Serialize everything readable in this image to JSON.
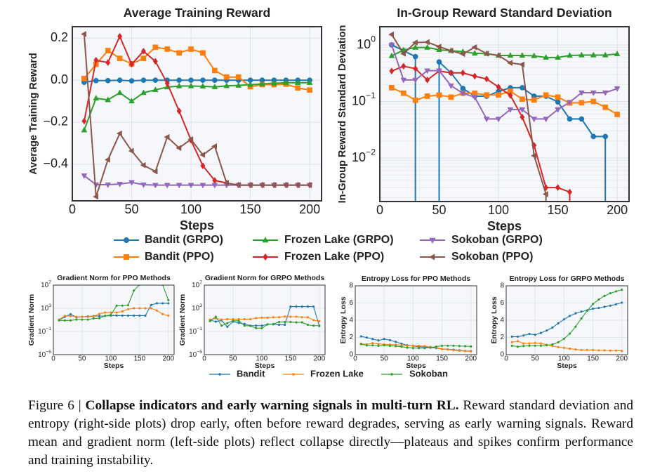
{
  "colors": {
    "blue": "#1f77b4",
    "orange": "#ff7f0e",
    "green": "#2ca02c",
    "red": "#d62728",
    "purple": "#9467bd",
    "brown": "#8c564b"
  },
  "top_legend": [
    {
      "label": "Bandit (GRPO)",
      "color": "#1f77b4",
      "marker": "circle"
    },
    {
      "label": "Frozen Lake (GRPO)",
      "color": "#2ca02c",
      "marker": "triangle-up"
    },
    {
      "label": "Sokoban (GRPO)",
      "color": "#9467bd",
      "marker": "triangle-down"
    },
    {
      "label": "Bandit (PPO)",
      "color": "#ff7f0e",
      "marker": "square"
    },
    {
      "label": "Frozen Lake (PPO)",
      "color": "#d62728",
      "marker": "diamond"
    },
    {
      "label": "Sokoban (PPO)",
      "color": "#8c564b",
      "marker": "triangle-left"
    }
  ],
  "bottom_legend": [
    {
      "label": "Bandit",
      "color": "#1f77b4"
    },
    {
      "label": "Frozen Lake",
      "color": "#ff7f0e"
    },
    {
      "label": "Sokoban",
      "color": "#2ca02c"
    }
  ],
  "chart_data": [
    {
      "type": "line",
      "title": "Average Training Reward",
      "xlabel": "Steps",
      "ylabel": "Average Training Reward",
      "xlim": [
        0,
        210
      ],
      "ylim": [
        -0.575,
        0.255
      ],
      "yscale": "linear",
      "grid": true,
      "xticks": [
        0,
        50,
        100,
        150,
        200
      ],
      "yticks": [
        -0.4,
        -0.2,
        0.0,
        0.2
      ],
      "ytick_labels": [
        "−0.4",
        "−0.2",
        "0.0",
        "0.2"
      ],
      "x": [
        10,
        20,
        30,
        40,
        50,
        60,
        70,
        80,
        90,
        100,
        110,
        120,
        130,
        140,
        150,
        160,
        170,
        180,
        190,
        200
      ],
      "series": [
        {
          "name": "Bandit (GRPO)",
          "color": "#1f77b4",
          "marker": "circle",
          "values": [
            -0.01,
            -0.002,
            -0.002,
            0,
            -0.003,
            0,
            0,
            0,
            0,
            0,
            0,
            0,
            0,
            0,
            0,
            0,
            0,
            0,
            0,
            0
          ]
        },
        {
          "name": "Bandit (PPO)",
          "color": "#ff7f0e",
          "marker": "square",
          "values": [
            0.008,
            0.076,
            0.141,
            0.104,
            0.078,
            0.104,
            0.157,
            0.148,
            0.13,
            0.148,
            0.13,
            0.046,
            0.015,
            0.015,
            -0.031,
            -0.021,
            -0.021,
            -0.019,
            -0.037,
            -0.047
          ]
        },
        {
          "name": "Frozen Lake (GRPO)",
          "color": "#2ca02c",
          "marker": "triangle-up",
          "values": [
            -0.238,
            -0.086,
            -0.094,
            -0.06,
            -0.1,
            -0.06,
            -0.046,
            -0.033,
            -0.028,
            -0.028,
            -0.029,
            -0.032,
            -0.027,
            -0.025,
            -0.021,
            -0.018,
            -0.015,
            -0.012,
            -0.012,
            -0.012
          ]
        },
        {
          "name": "Frozen Lake (PPO)",
          "color": "#d62728",
          "marker": "diamond",
          "values": [
            -0.195,
            0.095,
            0.084,
            0.209,
            0.076,
            0.138,
            0.09,
            -0.015,
            -0.147,
            -0.286,
            -0.408,
            -0.478,
            -0.49,
            -0.5,
            -0.5,
            -0.5,
            -0.5,
            -0.5,
            -0.5,
            -0.5
          ]
        },
        {
          "name": "Sokoban (GRPO)",
          "color": "#9467bd",
          "marker": "triangle-down",
          "values": [
            -0.455,
            -0.498,
            -0.498,
            -0.495,
            -0.487,
            -0.498,
            -0.5,
            -0.5,
            -0.5,
            -0.5,
            -0.5,
            -0.5,
            -0.5,
            -0.5,
            -0.5,
            -0.5,
            -0.5,
            -0.5,
            -0.5,
            -0.5
          ]
        },
        {
          "name": "Sokoban (PPO)",
          "color": "#8c564b",
          "marker": "triangle-left",
          "values": [
            0.22,
            -0.555,
            -0.379,
            -0.254,
            -0.337,
            -0.405,
            -0.435,
            -0.271,
            -0.323,
            -0.282,
            -0.356,
            -0.315,
            -0.49,
            -0.5,
            -0.5,
            -0.5,
            -0.5,
            -0.5,
            -0.5,
            -0.5
          ]
        }
      ]
    },
    {
      "type": "line",
      "title": "In-Group Reward Standard Deviation",
      "xlabel": "Steps",
      "ylabel": "In-Group Reward Standard Deviation",
      "xlim": [
        0,
        210
      ],
      "ylim": [
        0.0017,
        2.1
      ],
      "yscale": "log",
      "grid": true,
      "xticks": [
        0,
        50,
        100,
        150,
        200
      ],
      "yticks": [
        1,
        0.1,
        0.01
      ],
      "ytick_labels": [
        {
          "b": "10",
          "e": "0"
        },
        {
          "b": "10",
          "e": "−1"
        },
        {
          "b": "10",
          "e": "−2"
        }
      ],
      "x": [
        10,
        20,
        30,
        40,
        50,
        60,
        70,
        80,
        90,
        100,
        110,
        120,
        130,
        140,
        150,
        160,
        170,
        180,
        190,
        200
      ],
      "series": [
        {
          "name": "Bandit (GRPO)",
          "color": "#1f77b4",
          "marker": "circle",
          "values": [
            1.0,
            0.79,
            0.62,
            0,
            0.5,
            0.32,
            0.17,
            0.124,
            0.124,
            0.15,
            0.175,
            0.175,
            0.124,
            0.124,
            0.098,
            0.049,
            0.049,
            0.024,
            0.024,
            0
          ]
        },
        {
          "name": "Bandit (PPO)",
          "color": "#ff7f0e",
          "marker": "square",
          "values": [
            0.175,
            0.14,
            0.105,
            0.124,
            0.13,
            0.119,
            0.14,
            0.14,
            0.13,
            0.13,
            0.152,
            0.11,
            0.106,
            0.13,
            0.119,
            0.094,
            0.095,
            0.1,
            0.079,
            0.059
          ]
        },
        {
          "name": "Frozen Lake (GRPO)",
          "color": "#2ca02c",
          "marker": "triangle-up",
          "values": [
            0.64,
            0.81,
            0.9,
            0.9,
            0.82,
            0.79,
            0.76,
            0.71,
            0.7,
            0.65,
            0.65,
            0.65,
            0.64,
            0.6,
            0.6,
            0.65,
            0.66,
            0.66,
            0.66,
            0.69
          ]
        },
        {
          "name": "Frozen Lake (PPO)",
          "color": "#d62728",
          "marker": "diamond",
          "values": [
            0.345,
            0.42,
            0.38,
            0.24,
            0.345,
            0.32,
            0.32,
            0.28,
            0.25,
            0.18,
            0.128,
            0.053,
            0.0167,
            0.003,
            0.003,
            0.0025,
            0,
            0,
            0,
            0
          ]
        },
        {
          "name": "Sokoban (GRPO)",
          "color": "#9467bd",
          "marker": "triangle-down",
          "values": [
            1.0,
            0.24,
            0.24,
            0.35,
            0.35,
            0.19,
            0.14,
            0.119,
            0.049,
            0.049,
            0.072,
            0.072,
            0.049,
            0.049,
            0.072,
            0.097,
            0.143,
            0.143,
            0.143,
            0.169
          ]
        },
        {
          "name": "Sokoban (PPO)",
          "color": "#8c564b",
          "marker": "triangle-left",
          "values": [
            1.53,
            0.7,
            1.1,
            1.12,
            0.93,
            0.79,
            0.69,
            0.91,
            0.7,
            0.65,
            0.48,
            0.45,
            0.011,
            0.0023,
            0,
            0,
            0,
            0,
            0,
            0
          ]
        }
      ]
    },
    {
      "type": "line",
      "title": "Gradient Norm for PPO Methods",
      "xlabel": "Steps",
      "ylabel": "Gradient Norm",
      "xlim": [
        0,
        210
      ],
      "ylim": [
        1e-05,
        10000000.0
      ],
      "yscale": "log",
      "grid": true,
      "xticks": [
        0,
        50,
        100,
        150,
        200
      ],
      "yticks": [
        1e-05,
        0.1,
        1000,
        10000000.0
      ],
      "ytick_labels": [
        {
          "b": "10",
          "e": "−5"
        },
        {
          "b": "10",
          "e": "−1"
        },
        {
          "b": "10",
          "e": "3"
        },
        {
          "b": "10",
          "e": "7"
        }
      ],
      "x": [
        10,
        20,
        30,
        40,
        50,
        60,
        70,
        80,
        90,
        100,
        110,
        120,
        130,
        140,
        150,
        160,
        170,
        180,
        190,
        200
      ],
      "series": [
        {
          "name": "Bandit",
          "color": "#1f77b4",
          "marker": "dot",
          "values": [
            9,
            34,
            95,
            28,
            34,
            40,
            45,
            45,
            48,
            54,
            56,
            54,
            54,
            54,
            54,
            54,
            3700,
            7200,
            7200,
            7200
          ]
        },
        {
          "name": "Frozen Lake",
          "color": "#ff7f0e",
          "marker": "dot",
          "values": [
            11,
            50,
            45,
            34,
            34,
            34,
            40,
            105,
            186,
            186,
            186,
            295,
            690,
            1000,
            1000,
            1000,
            1000,
            400,
            100,
            54
          ]
        },
        {
          "name": "Sokoban",
          "color": "#2ca02c",
          "marker": "dot",
          "values": [
            8,
            8,
            8,
            11,
            11,
            11,
            18,
            19,
            50,
            72,
            2800,
            2800,
            3400,
            1150000,
            12000000,
            30000000,
            30000000,
            30000000,
            12000000,
            25000
          ]
        }
      ]
    },
    {
      "type": "line",
      "title": "Gradient Norm for GRPO Methods",
      "xlabel": "Steps",
      "ylabel": "Gradient Norm",
      "xlim": [
        0,
        210
      ],
      "ylim": [
        1e-05,
        10000000.0
      ],
      "yscale": "log",
      "grid": true,
      "xticks": [
        0,
        50,
        100,
        150,
        200
      ],
      "yticks": [
        1e-05,
        0.1,
        1000,
        10000000.0
      ],
      "ytick_labels": [
        {
          "b": "10",
          "e": "−5"
        },
        {
          "b": "10",
          "e": "−1"
        },
        {
          "b": "10",
          "e": "3"
        },
        {
          "b": "10",
          "e": "7"
        }
      ],
      "x": [
        10,
        20,
        30,
        40,
        50,
        60,
        70,
        80,
        90,
        100,
        110,
        120,
        130,
        140,
        150,
        160,
        170,
        180,
        190,
        200
      ],
      "series": [
        {
          "name": "Bandit",
          "color": "#1f77b4",
          "marker": "dot",
          "values": [
            9,
            5,
            8,
            0.63,
            5,
            3,
            2,
            1,
            1,
            1,
            1.7,
            1.7,
            1.4,
            1.4,
            1950,
            1950,
            1950,
            1950,
            1950,
            0.87
          ]
        },
        {
          "name": "Frozen Lake",
          "color": "#ff7f0e",
          "marker": "dot",
          "values": [
            11,
            18,
            11,
            13,
            13,
            13,
            13,
            13,
            20,
            23,
            23,
            28,
            28,
            37,
            35,
            35,
            28,
            28,
            9,
            6
          ]
        },
        {
          "name": "Sokoban",
          "color": "#2ca02c",
          "marker": "dot",
          "values": [
            6,
            34,
            1,
            2.7,
            7,
            7,
            1,
            0.9,
            0.37,
            0.37,
            1.6,
            1.9,
            4.3,
            4.3,
            4.3,
            3.7,
            3.7,
            1.4,
            1,
            1
          ]
        }
      ]
    },
    {
      "type": "line",
      "title": "Entropy Loss for PPO Methods",
      "xlabel": "Steps",
      "ylabel": "Entropy Loss",
      "xlim": [
        0,
        210
      ],
      "ylim": [
        0,
        8
      ],
      "yscale": "linear",
      "grid": true,
      "xticks": [
        0,
        50,
        100,
        150,
        200
      ],
      "yticks": [
        0,
        2,
        4,
        6,
        8
      ],
      "ytick_labels": [
        "0",
        "2",
        "4",
        "6",
        "8"
      ],
      "x": [
        10,
        20,
        30,
        40,
        50,
        60,
        70,
        80,
        90,
        100,
        110,
        120,
        130,
        140,
        150,
        160,
        170,
        180,
        190,
        200
      ],
      "series": [
        {
          "name": "Bandit",
          "color": "#1f77b4",
          "marker": "dot",
          "values": [
            2.12,
            1.98,
            1.82,
            1.65,
            1.82,
            1.68,
            1.49,
            1.27,
            1.08,
            1.0,
            0.92,
            0.87,
            0.81,
            0.76,
            0.65,
            0.62,
            0.57,
            0.51,
            0.43,
            0.41
          ]
        },
        {
          "name": "Frozen Lake",
          "color": "#ff7f0e",
          "marker": "dot",
          "values": [
            1.27,
            1.19,
            1.33,
            1.25,
            1.19,
            1.17,
            1.14,
            1.11,
            1.03,
            1.03,
            1.03,
            0.98,
            0.89,
            0.81,
            0.65,
            0.6,
            0.51,
            0.46,
            0.41,
            0.38
          ]
        },
        {
          "name": "Sokoban",
          "color": "#2ca02c",
          "marker": "dot",
          "values": [
            1.22,
            1.08,
            1.08,
            1.03,
            1.08,
            1.03,
            0.98,
            0.92,
            0.81,
            0.76,
            0.76,
            0.76,
            0.81,
            0.92,
            1.03,
            1.03,
            1.03,
            1.0,
            0.98,
            0.95
          ]
        }
      ]
    },
    {
      "type": "line",
      "title": "Entropy Loss for GRPO Methods",
      "xlabel": "Steps",
      "ylabel": "Entropy Loss",
      "xlim": [
        0,
        210
      ],
      "ylim": [
        0,
        8
      ],
      "yscale": "linear",
      "grid": true,
      "xticks": [
        0,
        50,
        100,
        150,
        200
      ],
      "yticks": [
        0,
        2,
        4,
        6,
        8
      ],
      "ytick_labels": [
        "0",
        "2",
        "4",
        "6",
        "8"
      ],
      "x": [
        10,
        20,
        30,
        40,
        50,
        60,
        70,
        80,
        90,
        100,
        110,
        120,
        130,
        140,
        150,
        160,
        170,
        180,
        190,
        200
      ],
      "series": [
        {
          "name": "Bandit",
          "color": "#1f77b4",
          "marker": "dot",
          "values": [
            2.09,
            2.09,
            2.22,
            2.41,
            2.3,
            2.52,
            2.8,
            3.15,
            3.64,
            4.1,
            4.5,
            4.8,
            5.0,
            5.15,
            5.34,
            5.42,
            5.56,
            5.69,
            5.85,
            6.04
          ]
        },
        {
          "name": "Frozen Lake",
          "color": "#ff7f0e",
          "marker": "dot",
          "values": [
            1.44,
            1.57,
            1.3,
            1.3,
            1.36,
            1.3,
            1.14,
            1.0,
            0.87,
            0.79,
            0.68,
            0.6,
            0.54,
            0.54,
            0.52,
            0.49,
            0.49,
            0.47,
            0.47,
            0.43
          ]
        },
        {
          "name": "Sokoban",
          "color": "#2ca02c",
          "marker": "dot",
          "values": [
            1.03,
            0.92,
            1.0,
            1.03,
            1.03,
            1.03,
            1.08,
            1.19,
            1.44,
            1.84,
            2.44,
            3.25,
            4.2,
            5.1,
            5.88,
            6.4,
            6.83,
            7.13,
            7.35,
            7.54
          ]
        }
      ]
    }
  ],
  "caption": {
    "prefix": "Figure 6 | ",
    "bold": "Collapse indicators and early warning signals in multi-turn RL.",
    "body": " Reward standard deviation and entropy (right-side plots) drop early, often before reward degrades, serving as early warning signals. Reward mean and gradient norm (left-side plots) reflect collapse directly—plateaus and spikes confirm performance and training instability."
  }
}
